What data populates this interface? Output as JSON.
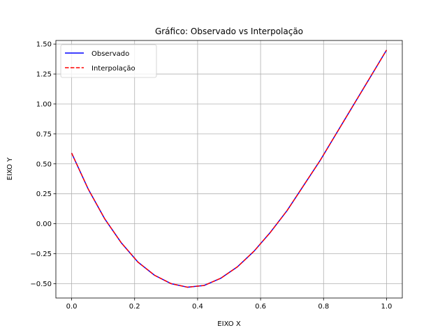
{
  "chart_data": {
    "type": "line",
    "title": "Gráfico: Observado vs Interpolação",
    "xlabel": "EIXO X",
    "ylabel": "EIXO Y",
    "xlim": [
      -0.05,
      1.05
    ],
    "ylim": [
      -0.62,
      1.53
    ],
    "grid": true,
    "legend_position": "top-left",
    "x_ticks": [
      0.0,
      0.2,
      0.4,
      0.6,
      0.8,
      1.0
    ],
    "x_tick_labels": [
      "0.0",
      "0.2",
      "0.4",
      "0.6",
      "0.8",
      "1.0"
    ],
    "y_ticks": [
      -0.5,
      -0.25,
      0.0,
      0.25,
      0.5,
      0.75,
      1.0,
      1.25,
      1.5
    ],
    "y_tick_labels": [
      "−0.50",
      "−0.25",
      "0.00",
      "0.25",
      "0.50",
      "0.75",
      "1.00",
      "1.25",
      "1.50"
    ],
    "x": [
      0.0,
      0.0526,
      0.1053,
      0.1579,
      0.2105,
      0.2632,
      0.3158,
      0.3684,
      0.4211,
      0.4737,
      0.5263,
      0.5789,
      0.6316,
      0.6842,
      0.7368,
      0.7895,
      0.8421,
      0.8947,
      0.9474,
      1.0
    ],
    "series": [
      {
        "name": "Observado",
        "color": "#0000ff",
        "style": "solid",
        "values": [
          0.59,
          0.29,
          0.04,
          -0.16,
          -0.32,
          -0.43,
          -0.5,
          -0.53,
          -0.515,
          -0.455,
          -0.36,
          -0.23,
          -0.07,
          0.11,
          0.32,
          0.53,
          0.76,
          0.99,
          1.22,
          1.45
        ]
      },
      {
        "name": "Interpolação",
        "color": "#ff0000",
        "style": "dashed",
        "values": [
          0.59,
          0.29,
          0.04,
          -0.16,
          -0.32,
          -0.43,
          -0.5,
          -0.53,
          -0.515,
          -0.455,
          -0.36,
          -0.23,
          -0.07,
          0.11,
          0.32,
          0.53,
          0.76,
          0.99,
          1.22,
          1.45
        ]
      }
    ]
  }
}
